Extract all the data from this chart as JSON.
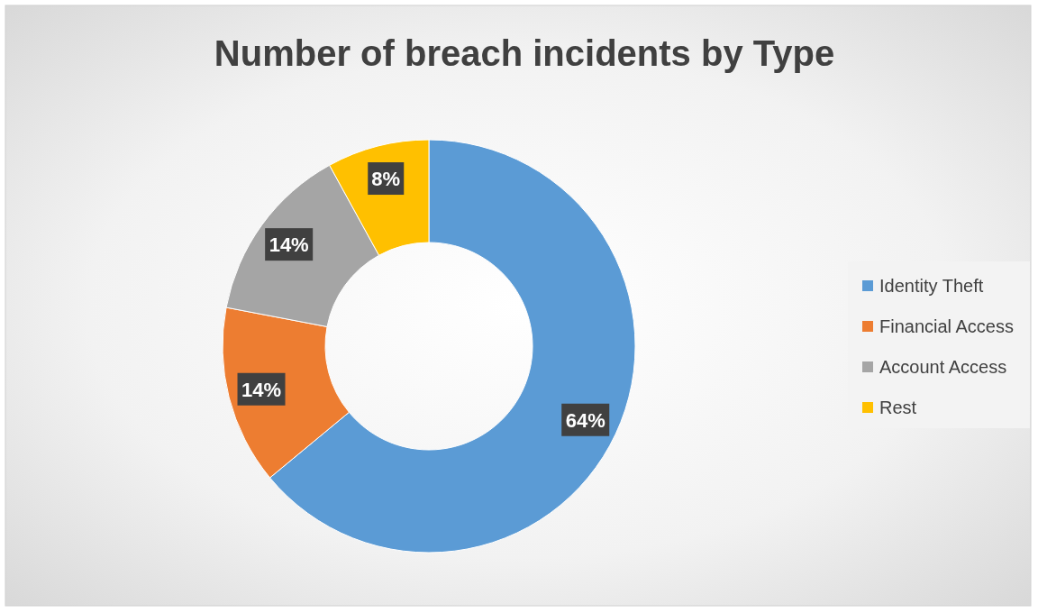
{
  "chart_data": {
    "type": "donut",
    "title": "Number of breach incidents by Type",
    "categories": [
      "Identity Theft",
      "Financial Access",
      "Account Access",
      "Rest"
    ],
    "values": [
      64,
      14,
      14,
      8
    ],
    "colors": [
      "#5b9bd5",
      "#ed7d31",
      "#a5a5a5",
      "#ffc000"
    ],
    "value_labels": [
      "64%",
      "14%",
      "14%",
      "8%"
    ],
    "legend": "right"
  }
}
